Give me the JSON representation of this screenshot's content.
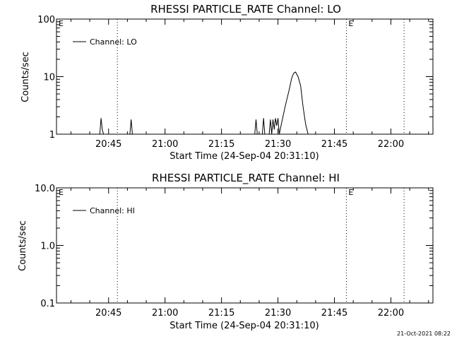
{
  "figure": {
    "timestamp": "21-Oct-2021 08:22",
    "line_color": "#000000",
    "background": "#ffffff"
  },
  "chart_data": [
    {
      "type": "line",
      "title": "RHESSI PARTICLE_RATE Channel: LO",
      "xlabel": "Start Time (24-Sep-04 20:31:10)",
      "ylabel": "Counts/sec",
      "y_scale": "log",
      "ylim": [
        1,
        100
      ],
      "y_ticks": [
        "1",
        "10",
        "100"
      ],
      "y_tick_values": [
        1,
        10,
        100
      ],
      "xlim": [
        "20:31:10",
        "22:11:10"
      ],
      "x_ticks": [
        "20:45",
        "21:00",
        "21:15",
        "21:30",
        "21:45",
        "22:00"
      ],
      "x_tick_values": [
        "20:45",
        "21:00",
        "21:15",
        "21:30",
        "21:45",
        "22:00"
      ],
      "legend": {
        "label": "Channel: LO",
        "position": "top-left"
      },
      "markers": [
        {
          "label": "E",
          "time": "20:31:10"
        },
        {
          "label": "E",
          "time": "21:48:10"
        }
      ],
      "dotted_lines": [
        "20:47:20",
        "21:48:10",
        "22:03:30"
      ],
      "series": [
        {
          "name": "Channel: LO",
          "x": [
            "20:42:40",
            "20:43:00",
            "20:43:20",
            "20:43:40",
            "20:50:40",
            "20:51:00",
            "20:51:20",
            "21:23:50",
            "21:24:10",
            "21:24:30",
            "21:25:50",
            "21:26:10",
            "21:26:30",
            "21:27:40",
            "21:28:00",
            "21:28:20",
            "21:28:40",
            "21:29:00",
            "21:29:20",
            "21:29:40",
            "21:30:00",
            "21:30:20",
            "21:31:00",
            "21:32:00",
            "21:33:00",
            "21:33:40",
            "21:34:10",
            "21:34:40",
            "21:35:20",
            "21:36:00",
            "21:36:40",
            "21:37:20",
            "21:38:00"
          ],
          "y": [
            1,
            1.9,
            1.2,
            1,
            1,
            1.8,
            1,
            1,
            1.8,
            1,
            1,
            1.9,
            1,
            1,
            1.8,
            1,
            1.8,
            1.2,
            1.9,
            1.4,
            1.9,
            1,
            1.6,
            3.2,
            6,
            9.5,
            11.5,
            12,
            10,
            7,
            3,
            1.5,
            1
          ]
        }
      ]
    },
    {
      "type": "line",
      "title": "RHESSI PARTICLE_RATE Channel: HI",
      "xlabel": "Start Time (24-Sep-04 20:31:10)",
      "ylabel": "Counts/sec",
      "y_scale": "log",
      "ylim": [
        0.1,
        10
      ],
      "y_ticks": [
        "0.1",
        "1.0",
        "10.0"
      ],
      "y_tick_values": [
        0.1,
        1,
        10
      ],
      "xlim": [
        "20:31:10",
        "22:11:10"
      ],
      "x_ticks": [
        "20:45",
        "21:00",
        "21:15",
        "21:30",
        "21:45",
        "22:00"
      ],
      "x_tick_values": [
        "20:45",
        "21:00",
        "21:15",
        "21:30",
        "21:45",
        "22:00"
      ],
      "legend": {
        "label": "Channel: HI",
        "position": "top-left"
      },
      "markers": [
        {
          "label": "E",
          "time": "20:31:10"
        },
        {
          "label": "E",
          "time": "21:48:10"
        }
      ],
      "dotted_lines": [
        "20:47:20",
        "21:48:10",
        "22:03:30"
      ],
      "series": [
        {
          "name": "Channel: HI",
          "x": [],
          "y": []
        }
      ]
    }
  ]
}
